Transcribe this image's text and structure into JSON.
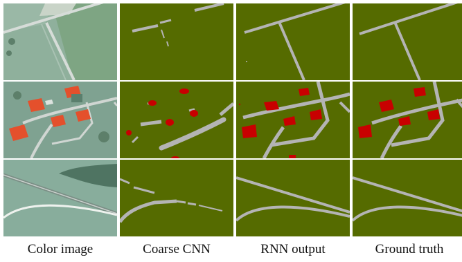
{
  "figure": {
    "columns": [
      {
        "caption": "Color image"
      },
      {
        "caption": "Coarse CNN"
      },
      {
        "caption": "RNN output"
      },
      {
        "caption": "Ground truth"
      }
    ],
    "rows": 3
  },
  "colors": {
    "background_class": "#556b00",
    "road_class": "#b4b4b4",
    "building_class": "#c80000",
    "separator": "#ffffff"
  }
}
